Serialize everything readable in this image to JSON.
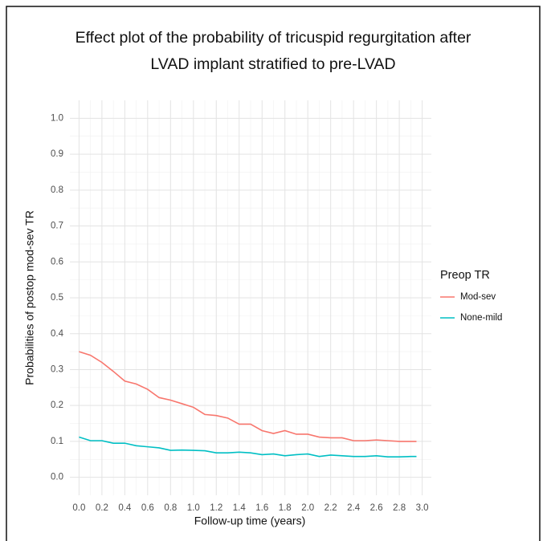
{
  "chart_data": {
    "type": "line",
    "title": [
      "Effect plot of the probability of tricuspid regurgitation after",
      "LVAD implant stratified to pre-LVAD"
    ],
    "x_label": "Follow-up time (years)",
    "y_label": "Probabilities of postop mod-sev TR",
    "legend_title": "Preop TR",
    "legend": "right",
    "grid": true,
    "minor_grid": true,
    "x": [
      0,
      0.1,
      0.2,
      0.3,
      0.4,
      0.5,
      0.6,
      0.7,
      0.8,
      0.9,
      1.0,
      1.1,
      1.2,
      1.3,
      1.4,
      1.5,
      1.6,
      1.7,
      1.8,
      1.9,
      2.0,
      2.1,
      2.2,
      2.3,
      2.4,
      2.5,
      2.6,
      2.7,
      2.8,
      2.9,
      2.95
    ],
    "series": [
      {
        "name": "Mod-sev",
        "color": "#F8766D",
        "values": [
          0.35,
          0.34,
          0.32,
          0.295,
          0.268,
          0.26,
          0.245,
          0.222,
          0.215,
          0.205,
          0.195,
          0.175,
          0.172,
          0.165,
          0.148,
          0.148,
          0.13,
          0.122,
          0.13,
          0.12,
          0.12,
          0.112,
          0.11,
          0.11,
          0.102,
          0.102,
          0.104,
          0.102,
          0.1,
          0.1,
          0.1
        ]
      },
      {
        "name": "None-mild",
        "color": "#00BFC4",
        "values": [
          0.112,
          0.102,
          0.102,
          0.095,
          0.095,
          0.088,
          0.085,
          0.082,
          0.075,
          0.076,
          0.075,
          0.074,
          0.068,
          0.068,
          0.07,
          0.068,
          0.063,
          0.065,
          0.06,
          0.063,
          0.065,
          0.058,
          0.062,
          0.06,
          0.058,
          0.058,
          0.06,
          0.057,
          0.057,
          0.058,
          0.058
        ]
      }
    ],
    "xlim": [
      -0.08,
      3.08
    ],
    "ylim": [
      -0.05,
      1.05
    ],
    "xticks": [
      {
        "value": 0,
        "label": "0.0"
      },
      0.2,
      0.4,
      0.6,
      0.8,
      {
        "value": 1,
        "label": "1.0"
      },
      1.2,
      1.4,
      1.6,
      1.8,
      {
        "value": 2,
        "label": "2.0"
      },
      2.2,
      2.4,
      2.6,
      2.8,
      {
        "value": 3,
        "label": "3.0"
      }
    ],
    "yticks": [
      {
        "value": 0,
        "label": "0.0"
      },
      0.1,
      0.2,
      0.3,
      0.4,
      0.5,
      0.6,
      0.7,
      0.8,
      0.9,
      {
        "value": 1,
        "label": "1.0"
      }
    ]
  }
}
